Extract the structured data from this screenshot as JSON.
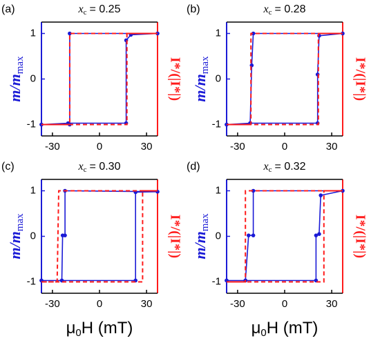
{
  "chart_data": [
    {
      "type": "line",
      "panel": "(a)",
      "title_var": "x",
      "title_sub": "c",
      "title_value": "= 0.25",
      "ylabel_main": "m/m",
      "ylabel_sub": "max",
      "y2label": "I*/(|I*|)",
      "xlim": [
        -37,
        37
      ],
      "xticks": [
        -30,
        0,
        30
      ],
      "ylim": [
        -1.25,
        1.25
      ],
      "yticks": [
        -1,
        0,
        1
      ],
      "y2lim": [
        -1.25,
        1.25
      ],
      "series": [
        {
          "color": "#1a1ad6",
          "style": "solid",
          "marker": "circle",
          "x": [
            -37,
            -20,
            17,
            17,
            20,
            37,
            -19,
            -19,
            -37
          ],
          "values": [
            -1,
            -0.97,
            -0.97,
            0.85,
            0.97,
            1,
            1,
            -1,
            -1
          ]
        },
        {
          "color": "#ff1a1a",
          "style": "dashed",
          "axis": "y2",
          "x": [
            -37,
            17.5,
            17.5,
            37,
            -19,
            -19,
            -37
          ],
          "values": [
            -1,
            -1,
            1,
            1,
            1,
            -1,
            -1
          ]
        }
      ]
    },
    {
      "type": "line",
      "panel": "(b)",
      "title_var": "x",
      "title_sub": "c",
      "title_value": "= 0.28",
      "ylabel_main": "m/m",
      "ylabel_sub": "max",
      "y2label": "I*/(|I*|)",
      "xlim": [
        -37,
        37
      ],
      "xticks": [
        -30,
        0,
        30
      ],
      "ylim": [
        -1.25,
        1.25
      ],
      "yticks": [
        -1,
        0,
        1
      ],
      "y2lim": [
        -1.25,
        1.25
      ],
      "series": [
        {
          "color": "#1a1ad6",
          "style": "solid",
          "marker": "circle",
          "x": [
            -37,
            -22,
            21,
            21,
            22,
            37,
            -20,
            -21,
            -22,
            -37
          ],
          "values": [
            -1,
            -0.97,
            -0.97,
            0.1,
            0.95,
            1,
            1,
            0.3,
            -0.97,
            -1
          ]
        },
        {
          "color": "#ff1a1a",
          "style": "dashed",
          "axis": "y2",
          "x": [
            -37,
            21.5,
            21.5,
            37,
            -21.5,
            -21.5,
            -37
          ],
          "values": [
            -1,
            -1,
            1,
            1,
            1,
            -1,
            -1
          ]
        }
      ]
    },
    {
      "type": "line",
      "panel": "(c)",
      "title_var": "x",
      "title_sub": "c",
      "title_value": "= 0.30",
      "ylabel_main": "m/m",
      "ylabel_sub": "max",
      "y2label": "I*/(|I*|)",
      "xlabel_main": "μ",
      "xlabel_sub": "0",
      "xlabel_rest": "H (mT)",
      "xlim": [
        -37,
        37
      ],
      "xticks": [
        -30,
        0,
        30
      ],
      "ylim": [
        -1.25,
        1.25
      ],
      "yticks": [
        -1,
        0,
        1
      ],
      "y2lim": [
        -1.25,
        1.25
      ],
      "series": [
        {
          "color": "#1a1ad6",
          "style": "solid",
          "marker": "circle",
          "x": [
            -37,
            -24,
            23,
            23,
            37,
            -22,
            -22,
            -23.5,
            -24,
            -37
          ],
          "values": [
            -0.97,
            -0.97,
            -0.97,
            0.97,
            0.98,
            1,
            0.02,
            0.02,
            -0.97,
            -0.97
          ]
        },
        {
          "color": "#ff1a1a",
          "style": "dashed",
          "axis": "y2",
          "x": [
            -37,
            27.5,
            27.5,
            37,
            -26,
            -27,
            -37
          ],
          "values": [
            -1,
            -1,
            1,
            1,
            1,
            -1,
            -1
          ]
        }
      ]
    },
    {
      "type": "line",
      "panel": "(d)",
      "title_var": "x",
      "title_sub": "c",
      "title_value": "= 0.32",
      "ylabel_main": "m/m",
      "ylabel_sub": "max",
      "y2label": "I*/(|I*|)",
      "xlabel_main": "μ",
      "xlabel_sub": "0",
      "xlabel_rest": "H (mT)",
      "xlim": [
        -37,
        37
      ],
      "xticks": [
        -30,
        0,
        30
      ],
      "ylim": [
        -1.25,
        1.25
      ],
      "yticks": [
        -1,
        0,
        1
      ],
      "y2lim": [
        -1.25,
        1.25
      ],
      "series": [
        {
          "color": "#1a1ad6",
          "style": "solid",
          "marker": "circle",
          "x": [
            -37,
            -25,
            20,
            20,
            22,
            23,
            37,
            -20,
            -20,
            -23,
            -25,
            -37
          ],
          "values": [
            -0.97,
            -0.97,
            -0.97,
            0.02,
            0.05,
            0.9,
            1,
            1,
            0.02,
            0.02,
            -0.97,
            -0.97
          ]
        },
        {
          "color": "#ff1a1a",
          "style": "dashed",
          "axis": "y2",
          "x": [
            -37,
            25,
            25,
            37,
            -25,
            -25,
            -37
          ],
          "values": [
            -1,
            -1,
            1,
            1,
            1,
            -1,
            -1
          ]
        }
      ]
    }
  ]
}
